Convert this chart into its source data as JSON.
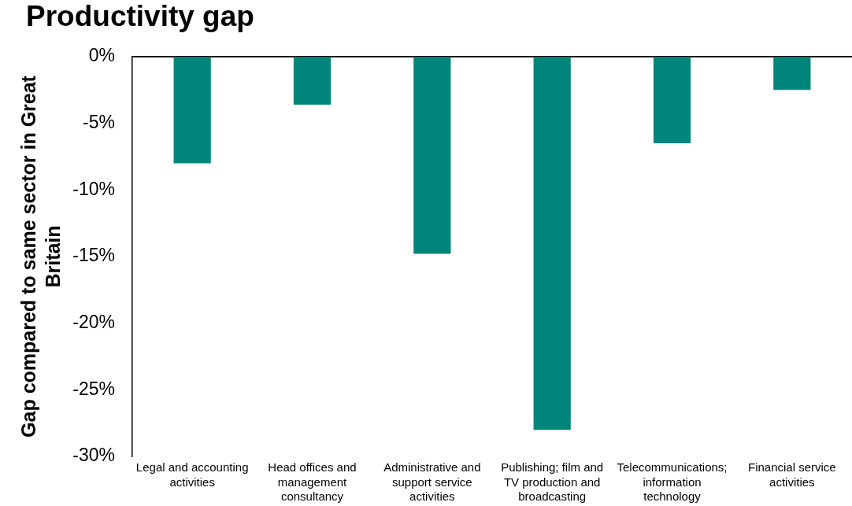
{
  "chart_data": {
    "type": "bar",
    "title": "Productivity gap",
    "ylabel": "Gap compared to same sector in Great Britain",
    "categories": [
      "Legal and accounting activities",
      "Head offices and management consultancy",
      "Administrative and support service activities",
      "Publishing; film and TV production and broadcasting",
      "Telecommunications; information technology",
      "Financial service activities"
    ],
    "values": [
      -8.0,
      -3.6,
      -14.8,
      -28.0,
      -6.5,
      -2.5
    ],
    "color": "#00857b",
    "ylim": [
      -30,
      0
    ],
    "yticks": [
      {
        "value": -30,
        "label": "-30%"
      },
      {
        "value": -25,
        "label": "-25%"
      },
      {
        "value": -20,
        "label": "-20%"
      },
      {
        "value": -15,
        "label": "-15%"
      },
      {
        "value": -10,
        "label": "-10%"
      },
      {
        "value": -5,
        "label": "-5%"
      },
      {
        "value": 0,
        "label": "0%"
      }
    ],
    "grid": false,
    "legend": false
  }
}
